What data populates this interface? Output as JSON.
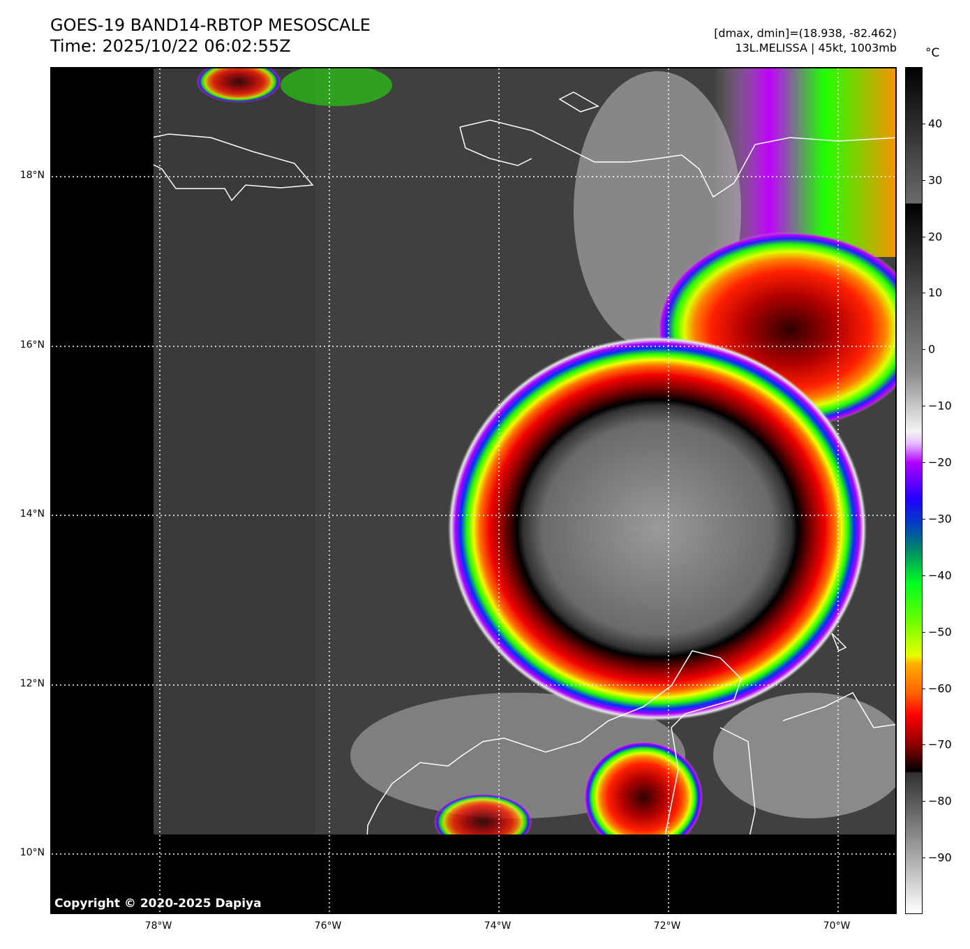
{
  "header": {
    "title": "GOES-19 BAND14-RBTOP MESOSCALE",
    "time": "Time: 2025/10/22 06:02:55Z",
    "dmax_dmin": "[dmax, dmin]=(18.938, -82.462)",
    "storm": "13L.MELISSA | 45kt, 1003mb"
  },
  "colorbar": {
    "unit": "°C",
    "ticks": [
      "40",
      "30",
      "20",
      "10",
      "0",
      "−10",
      "−20",
      "−30",
      "−40",
      "−50",
      "−60",
      "−70",
      "−80",
      "−90"
    ],
    "tick_values": [
      40,
      30,
      20,
      10,
      0,
      -10,
      -20,
      -30,
      -40,
      -50,
      -60,
      -70,
      -80,
      -90
    ],
    "range": [
      -100,
      50
    ]
  },
  "axes": {
    "lat_labels": [
      "18°N",
      "16°N",
      "14°N",
      "12°N",
      "10°N"
    ],
    "lon_labels": [
      "78°W",
      "76°W",
      "74°W",
      "72°W",
      "70°W"
    ]
  },
  "copyright": "Copyright © 2020-2025 Dapiya"
}
